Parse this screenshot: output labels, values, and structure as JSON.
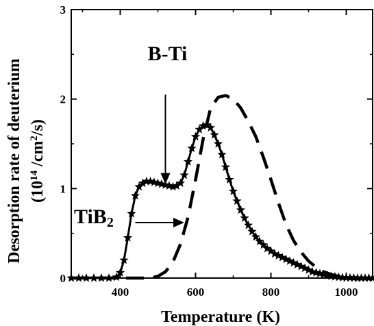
{
  "chart_data": {
    "type": "line",
    "title": "",
    "xlabel": "Temperature (K)",
    "ylabel_line1": "Desorption rate of deuterium",
    "ylabel_line2": "(10",
    "ylabel_sup1": "14",
    "ylabel_mid": " /cm",
    "ylabel_sup2": "2",
    "ylabel_end": "/s)",
    "xlim": [
      270,
      1070
    ],
    "ylim": [
      0,
      3
    ],
    "x_ticks": [
      400,
      600,
      800,
      1000
    ],
    "x_tick_labels": [
      "400",
      "600",
      "800",
      "1000"
    ],
    "y_ticks": [
      0,
      1,
      2,
      3
    ],
    "y_tick_labels": [
      "0",
      "1",
      "2",
      "3"
    ],
    "grid": false,
    "annotations": [
      {
        "text": "B-Ti",
        "arrow_from": [
          520,
          2.05
        ],
        "arrow_to": [
          520,
          1.05
        ]
      },
      {
        "text": "TiB",
        "sub": "2",
        "arrow_from": [
          440,
          0.62
        ],
        "arrow_to": [
          570,
          0.62
        ]
      }
    ],
    "series": [
      {
        "style": "solid-star",
        "color": "#000000",
        "x": [
          270,
          290,
          310,
          330,
          350,
          370,
          390,
          400,
          410,
          420,
          430,
          440,
          450,
          460,
          470,
          480,
          490,
          500,
          510,
          520,
          530,
          540,
          550,
          560,
          570,
          580,
          590,
          600,
          610,
          620,
          630,
          640,
          650,
          660,
          670,
          680,
          690,
          700,
          710,
          720,
          730,
          740,
          750,
          760,
          770,
          780,
          790,
          800,
          810,
          820,
          830,
          840,
          850,
          860,
          870,
          880,
          890,
          900,
          910,
          920,
          930,
          940,
          950,
          960,
          970,
          980,
          990,
          1000,
          1010,
          1020,
          1030,
          1040,
          1050,
          1060,
          1070
        ],
        "y": [
          0,
          0,
          0,
          0,
          0,
          0,
          0.01,
          0.06,
          0.2,
          0.45,
          0.72,
          0.92,
          1.02,
          1.06,
          1.08,
          1.08,
          1.07,
          1.06,
          1.05,
          1.04,
          1.03,
          1.02,
          1.03,
          1.06,
          1.15,
          1.3,
          1.45,
          1.58,
          1.66,
          1.7,
          1.71,
          1.68,
          1.6,
          1.5,
          1.38,
          1.24,
          1.1,
          0.97,
          0.86,
          0.76,
          0.67,
          0.59,
          0.52,
          0.46,
          0.41,
          0.37,
          0.33,
          0.3,
          0.27,
          0.25,
          0.23,
          0.21,
          0.19,
          0.17,
          0.15,
          0.13,
          0.11,
          0.09,
          0.07,
          0.06,
          0.05,
          0.04,
          0.03,
          0.02,
          0.015,
          0.01,
          0.005,
          0.003,
          0.002,
          0.001,
          0,
          0,
          0,
          0,
          0
        ]
      },
      {
        "style": "dashed",
        "color": "#000000",
        "x": [
          270,
          300,
          350,
          400,
          420,
          440,
          460,
          480,
          500,
          520,
          540,
          560,
          580,
          600,
          620,
          640,
          660,
          680,
          700,
          720,
          740,
          760,
          780,
          800,
          820,
          840,
          860,
          880,
          900,
          920,
          940,
          960,
          980,
          1000,
          1020,
          1040,
          1070
        ],
        "y": [
          0,
          0,
          0,
          0,
          0,
          0,
          0,
          0,
          0.02,
          0.07,
          0.18,
          0.38,
          0.68,
          1.1,
          1.55,
          1.9,
          2.02,
          2.04,
          2.0,
          1.9,
          1.75,
          1.58,
          1.35,
          1.1,
          0.84,
          0.6,
          0.42,
          0.29,
          0.19,
          0.12,
          0.07,
          0.04,
          0.02,
          0.01,
          0.005,
          0,
          0
        ]
      }
    ]
  }
}
